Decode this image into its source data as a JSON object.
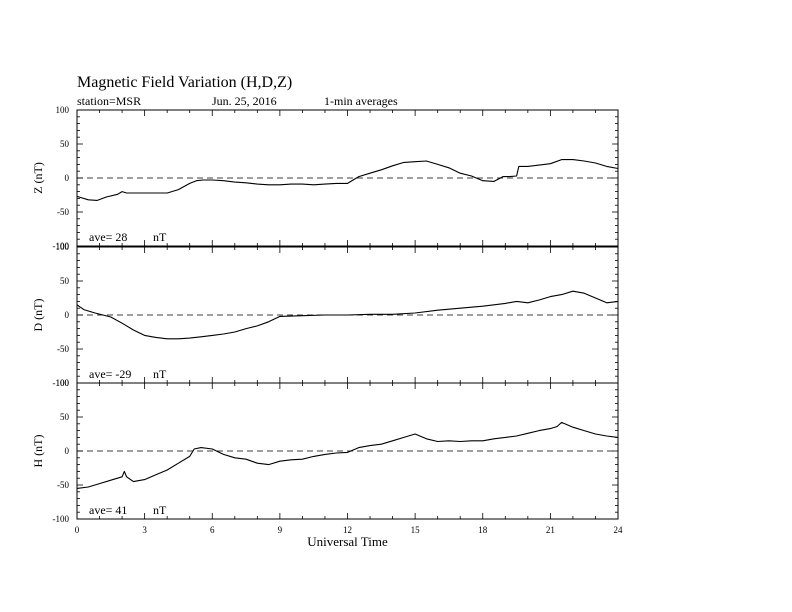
{
  "header": {
    "title": "Magnetic Field Variation (H,D,Z)",
    "station": "station=MSR",
    "date": "Jun. 25, 2016",
    "averaging": "1-min averages"
  },
  "chart_data": {
    "type": "line",
    "xlabel": "Universal Time",
    "xlim": [
      0,
      24
    ],
    "x_ticks": [
      "0",
      "3",
      "6",
      "9",
      "12",
      "15",
      "18",
      "21",
      "24"
    ],
    "ylim": [
      -100,
      100
    ],
    "y_ticks": [
      "100",
      "50",
      "0",
      "-50",
      "-100"
    ],
    "zero_line": "dashed",
    "panels": [
      {
        "ylabel": "Z (nT)",
        "ave_label": "ave= 28",
        "unit": "nT",
        "series": {
          "x": [
            0,
            0.5,
            0.9,
            1.3,
            1.8,
            2.0,
            2.2,
            2.6,
            3.0,
            3.5,
            4.0,
            4.5,
            5.0,
            5.3,
            5.6,
            6.0,
            6.5,
            7.0,
            7.5,
            8.0,
            8.5,
            9.0,
            9.5,
            10.0,
            10.5,
            11.0,
            11.5,
            12.0,
            12.5,
            13.0,
            13.5,
            14.0,
            14.5,
            15.0,
            15.5,
            16.0,
            16.5,
            17.0,
            17.5,
            18.0,
            18.5,
            18.9,
            19.2,
            19.5,
            19.6,
            20.0,
            20.5,
            21.0,
            21.5,
            22.0,
            22.5,
            23.0,
            23.5,
            24.0
          ],
          "y": [
            -27,
            -32,
            -33,
            -28,
            -24,
            -20,
            -22,
            -22,
            -22,
            -22,
            -22,
            -17,
            -8,
            -4,
            -3,
            -3,
            -4,
            -6,
            -7,
            -9,
            -10,
            -10,
            -9,
            -9,
            -10,
            -9,
            -8,
            -8,
            2,
            7,
            12,
            18,
            23,
            24,
            25,
            20,
            15,
            7,
            3,
            -4,
            -5,
            2,
            2,
            3,
            17,
            17,
            19,
            21,
            27,
            27,
            25,
            22,
            17,
            14
          ]
        }
      },
      {
        "ylabel": "D (nT)",
        "ave_label": "ave= -29",
        "unit": "nT",
        "series": {
          "x": [
            0,
            0.3,
            0.8,
            1.5,
            2.0,
            2.5,
            3.0,
            3.5,
            4.0,
            4.5,
            5.0,
            5.5,
            6.0,
            6.5,
            7.0,
            7.5,
            8.0,
            8.5,
            9.0,
            10.0,
            11.0,
            12.0,
            13.0,
            14.0,
            15.0,
            16.0,
            17.0,
            18.0,
            19.0,
            19.5,
            20.0,
            20.5,
            21.0,
            21.5,
            22.0,
            22.5,
            23.0,
            23.5,
            24.0
          ],
          "y": [
            15,
            8,
            3,
            -3,
            -12,
            -22,
            -30,
            -33,
            -35,
            -35,
            -34,
            -32,
            -30,
            -28,
            -25,
            -20,
            -16,
            -10,
            -2,
            -1,
            0,
            0,
            1,
            1,
            3,
            7,
            10,
            13,
            17,
            20,
            18,
            22,
            27,
            30,
            35,
            32,
            25,
            18,
            20
          ]
        }
      },
      {
        "ylabel": "H (nT)",
        "ave_label": "ave= 41",
        "unit": "nT",
        "series": {
          "x": [
            0,
            0.5,
            1.0,
            1.5,
            2.0,
            2.1,
            2.2,
            2.5,
            3.0,
            3.5,
            4.0,
            4.5,
            5.0,
            5.2,
            5.5,
            6.0,
            6.5,
            7.0,
            7.5,
            8.0,
            8.5,
            9.0,
            9.5,
            10.0,
            10.5,
            11.0,
            11.5,
            12.0,
            12.5,
            13.0,
            13.5,
            14.0,
            14.5,
            15.0,
            15.5,
            16.0,
            16.5,
            17.0,
            17.5,
            18.0,
            18.5,
            19.0,
            19.5,
            20.0,
            20.5,
            21.0,
            21.3,
            21.5,
            22.0,
            22.5,
            23.0,
            23.5,
            24.0
          ],
          "y": [
            -55,
            -53,
            -48,
            -43,
            -38,
            -30,
            -38,
            -45,
            -42,
            -35,
            -28,
            -18,
            -8,
            3,
            5,
            3,
            -5,
            -10,
            -12,
            -18,
            -20,
            -15,
            -13,
            -12,
            -8,
            -5,
            -3,
            -2,
            5,
            8,
            10,
            15,
            20,
            25,
            18,
            14,
            15,
            14,
            15,
            15,
            18,
            20,
            22,
            26,
            30,
            33,
            36,
            42,
            35,
            30,
            25,
            22,
            20
          ]
        }
      }
    ]
  }
}
